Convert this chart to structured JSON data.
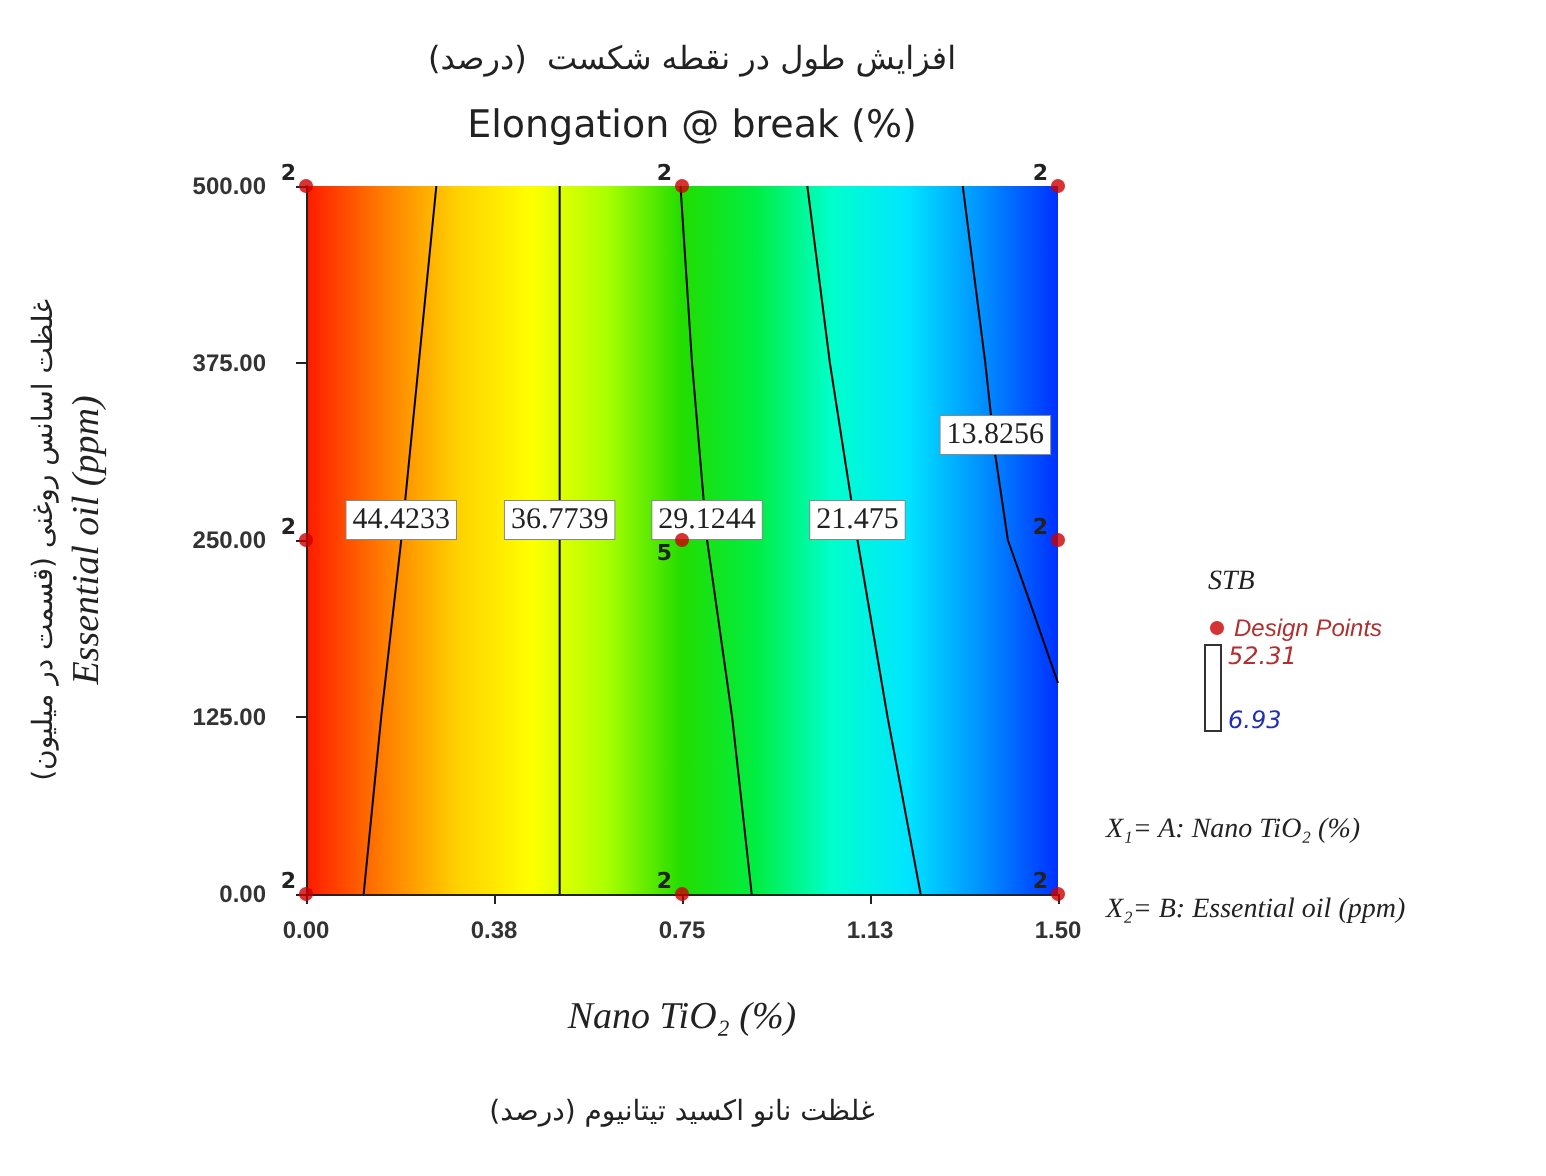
{
  "chart_data": {
    "type": "line",
    "title": "افزایش طول در نقطه شکست  (درصد)",
    "subtitle": "Elongation @ break (%)",
    "xlabel": "Nano TiO₂ (%)",
    "ylabel": "Essential oil (ppm)",
    "legend_title": "STB",
    "annotations": [
      "غلظت اسانس روغنی (قسمت در میلیون)",
      "غلظت نانو اکسید تیتانیوم (درصد)",
      "X₁= A: Nano TiO₂ (%)",
      "X₂= B: Essential oil (ppm)",
      "52.31",
      "6.93",
      {
        "text": "2",
        "x": 0,
        "y": 0
      },
      {
        "text": "2",
        "x": 0,
        "y": 250
      },
      {
        "text": "2",
        "x": 0,
        "y": 500
      },
      {
        "text": "2",
        "x": 0.75,
        "y": 0
      },
      {
        "text": "5",
        "x": 0.75,
        "y": 250
      },
      {
        "text": "2",
        "x": 0.75,
        "y": 500
      },
      {
        "text": "2",
        "x": 1.5,
        "y": 0
      },
      {
        "text": "2",
        "x": 1.5,
        "y": 250
      },
      {
        "text": "2",
        "x": 1.5,
        "y": 500
      }
    ],
    "xlim": [
      0,
      1.5
    ],
    "ylim": [
      0,
      500
    ],
    "xticks": [
      {
        "value": 0,
        "label": "0.00"
      },
      {
        "value": 0.375,
        "label": "0.38"
      },
      {
        "value": 0.75,
        "label": "0.75"
      },
      {
        "value": 1.125,
        "label": "1.13"
      },
      {
        "value": 1.5,
        "label": "1.50"
      }
    ],
    "yticks": [
      {
        "value": 0,
        "label": "0.00"
      },
      {
        "value": 125,
        "label": "125.00"
      },
      {
        "value": 250,
        "label": "250.00"
      },
      {
        "value": 375,
        "label": "375.00"
      },
      {
        "value": 500,
        "label": "500.00"
      }
    ],
    "series": [
      {
        "type": "line",
        "name": "44.4233",
        "color": "#000000",
        "x": [
          0.115,
          0.15,
          0.19,
          0.225,
          0.26
        ],
        "values": [
          0,
          125,
          250,
          375,
          500
        ]
      },
      {
        "type": "line",
        "name": "36.7739",
        "color": "#000000",
        "x": [
          0.506,
          0.506,
          0.506
        ],
        "values": [
          0,
          250,
          500
        ]
      },
      {
        "type": "line",
        "name": "29.1244",
        "color": "#000000",
        "x": [
          0.889,
          0.85,
          0.8,
          0.77,
          0.747
        ],
        "values": [
          0,
          125,
          250,
          375,
          500
        ]
      },
      {
        "type": "line",
        "name": "21.475",
        "color": "#000000",
        "x": [
          1.226,
          1.16,
          1.1,
          1.045,
          1.0
        ],
        "values": [
          0,
          125,
          250,
          375,
          500
        ]
      },
      {
        "type": "line",
        "name": "13.8256",
        "color": "#000000",
        "x": [
          1.5,
          1.45,
          1.4,
          1.375,
          1.355,
          1.31
        ],
        "values": [
          149,
          200,
          250,
          310,
          375,
          500
        ]
      },
      {
        "type": "scatter",
        "name": "Design Points",
        "color": "#cc0000",
        "x": [
          0,
          0,
          0,
          0.75,
          0.75,
          0.75,
          1.5,
          1.5,
          1.5
        ],
        "values": [
          0,
          250,
          500,
          0,
          250,
          500,
          0,
          250,
          500
        ]
      }
    ],
    "legend": "right",
    "grid": false
  }
}
